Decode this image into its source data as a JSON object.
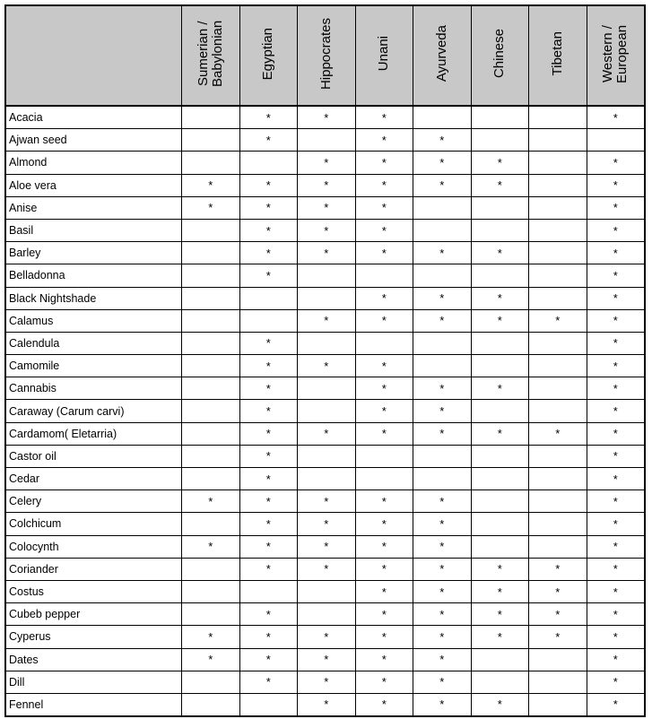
{
  "table": {
    "columns": [
      "Sumerian / Babylonian",
      "Egyptian",
      "Hippocrates",
      "Unani",
      "Ayurveda",
      "Chinese",
      "Tibetan",
      "Western / European"
    ],
    "rows": [
      [
        "Acacia",
        null,
        "*",
        "*",
        "*",
        null,
        null,
        null,
        "*"
      ],
      [
        "Ajwan seed",
        null,
        "*",
        null,
        "*",
        "*",
        null,
        null,
        null
      ],
      [
        "Almond",
        null,
        null,
        "*",
        "*",
        "*",
        "*",
        null,
        "*"
      ],
      [
        "Aloe vera",
        "*",
        "*",
        "*",
        "*",
        "*",
        "*",
        null,
        "*"
      ],
      [
        "Anise",
        "*",
        "*",
        "*",
        "*",
        null,
        null,
        null,
        "*"
      ],
      [
        "Basil",
        null,
        "*",
        "*",
        "*",
        null,
        null,
        null,
        "*"
      ],
      [
        "Barley",
        null,
        "*",
        "*",
        "*",
        "*",
        "*",
        null,
        "*"
      ],
      [
        "Belladonna",
        null,
        "*",
        null,
        null,
        null,
        null,
        null,
        "*"
      ],
      [
        "Black Nightshade",
        null,
        null,
        null,
        "*",
        "*",
        "*",
        null,
        "*"
      ],
      [
        "Calamus",
        null,
        null,
        "*",
        "*",
        "*",
        "*",
        "*",
        "*"
      ],
      [
        "Calendula",
        null,
        "*",
        null,
        null,
        null,
        null,
        null,
        "*"
      ],
      [
        "Camomile",
        null,
        "*",
        "*",
        "*",
        null,
        null,
        null,
        "*"
      ],
      [
        "Cannabis",
        null,
        "*",
        null,
        "*",
        "*",
        "*",
        null,
        "*"
      ],
      [
        "Caraway (Carum carvi)",
        null,
        "*",
        null,
        "*",
        "*",
        null,
        null,
        "*"
      ],
      [
        "Cardamom( Eletarria)",
        null,
        "*",
        "*",
        "*",
        "*",
        "*",
        "*",
        "*"
      ],
      [
        "Castor oil",
        null,
        "*",
        null,
        null,
        null,
        null,
        null,
        "*"
      ],
      [
        "Cedar",
        null,
        "*",
        null,
        null,
        null,
        null,
        null,
        "*"
      ],
      [
        "Celery",
        "*",
        "*",
        "*",
        "*",
        "*",
        null,
        null,
        "*"
      ],
      [
        "Colchicum",
        null,
        "*",
        "*",
        "*",
        "*",
        null,
        null,
        "*"
      ],
      [
        "Colocynth",
        "*",
        "*",
        "*",
        "*",
        "*",
        null,
        null,
        "*"
      ],
      [
        "Coriander",
        null,
        "*",
        "*",
        "*",
        "*",
        "*",
        "*",
        "*"
      ],
      [
        "Costus",
        null,
        null,
        null,
        "*",
        "*",
        "*",
        "*",
        "*"
      ],
      [
        "Cubeb pepper",
        null,
        "*",
        null,
        "*",
        "*",
        "*",
        "*",
        "*"
      ],
      [
        "Cyperus",
        "*",
        "*",
        "*",
        "*",
        "*",
        "*",
        "*",
        "*"
      ],
      [
        "Dates",
        "*",
        "*",
        "*",
        "*",
        "*",
        null,
        null,
        "*"
      ],
      [
        "Dill",
        null,
        "*",
        "*",
        "*",
        "*",
        null,
        null,
        "*"
      ],
      [
        "Fennel",
        null,
        null,
        "*",
        "*",
        "*",
        "*",
        null,
        "*"
      ]
    ]
  }
}
